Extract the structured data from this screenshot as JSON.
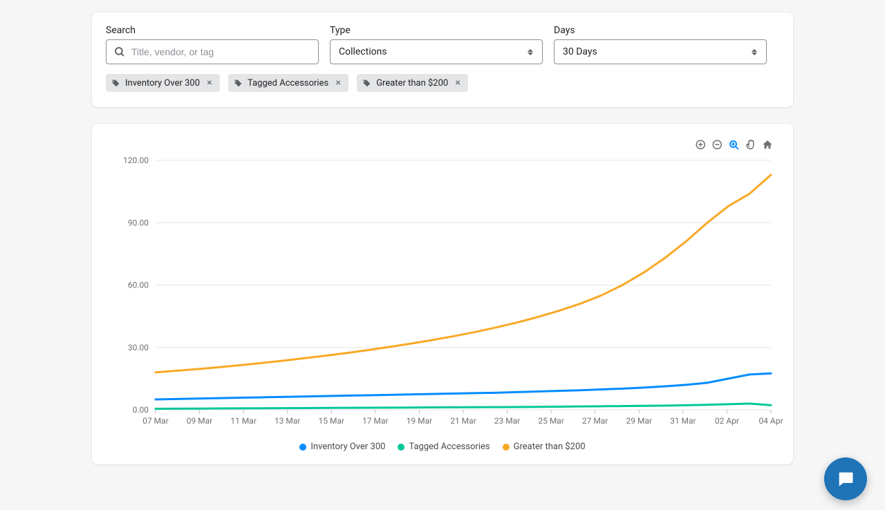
{
  "filters": {
    "search": {
      "label": "Search",
      "placeholder": "Title, vendor, or tag",
      "value": ""
    },
    "type": {
      "label": "Type",
      "selected": "Collections"
    },
    "days": {
      "label": "Days",
      "selected": "30 Days"
    },
    "chips": [
      {
        "label": "Inventory Over 300"
      },
      {
        "label": "Tagged Accessories"
      },
      {
        "label": "Greater than $200"
      }
    ]
  },
  "toolbar_icons": [
    "zoom-in",
    "zoom-out",
    "zoom-select",
    "pan",
    "home"
  ],
  "toolbar_active_index": 2,
  "chart": {
    "type": "line",
    "background_color": "#ffffff",
    "grid_color": "#e6e6e6",
    "axis_label_color": "#6d7175",
    "axis_font_size": 12,
    "line_width": 3,
    "y": {
      "min": 0,
      "max": 125,
      "ticks": [
        0,
        30,
        60,
        90,
        120
      ],
      "tick_labels": [
        "0.00",
        "30.00",
        "60.00",
        "90.00",
        "120.00"
      ]
    },
    "x_labels": [
      "07 Mar",
      "09 Mar",
      "11 Mar",
      "13 Mar",
      "15 Mar",
      "17 Mar",
      "19 Mar",
      "21 Mar",
      "23 Mar",
      "25 Mar",
      "27 Mar",
      "29 Mar",
      "31 Mar",
      "02 Apr",
      "04 Apr"
    ],
    "series": [
      {
        "name": "Inventory Over 300",
        "color": "#008cff",
        "values": [
          5,
          5.2,
          5.4,
          5.6,
          5.8,
          6,
          6.2,
          6.4,
          6.6,
          6.8,
          7,
          7.2,
          7.4,
          7.6,
          7.8,
          8,
          8.2,
          8.5,
          8.8,
          9.1,
          9.4,
          9.8,
          10.2,
          10.7,
          11.3,
          12,
          13,
          15,
          17,
          17.5
        ]
      },
      {
        "name": "Tagged Accessories",
        "color": "#00c896",
        "values": [
          0.5,
          0.55,
          0.6,
          0.65,
          0.7,
          0.75,
          0.8,
          0.85,
          0.9,
          0.95,
          1,
          1.05,
          1.1,
          1.15,
          1.2,
          1.25,
          1.3,
          1.35,
          1.4,
          1.5,
          1.6,
          1.7,
          1.8,
          1.9,
          2,
          2.2,
          2.4,
          2.7,
          3,
          2.2
        ]
      },
      {
        "name": "Greater than $200",
        "color": "#f9a825",
        "values": [
          18,
          18.8,
          19.6,
          20.5,
          21.5,
          22.5,
          23.6,
          24.8,
          26,
          27.3,
          28.7,
          30.2,
          31.8,
          33.5,
          35.3,
          37.3,
          39.5,
          41.9,
          44.6,
          47.6,
          51,
          55,
          60,
          66,
          73,
          81,
          90,
          98,
          104,
          113
        ]
      }
    ]
  },
  "chat_color": "#1f73b7"
}
